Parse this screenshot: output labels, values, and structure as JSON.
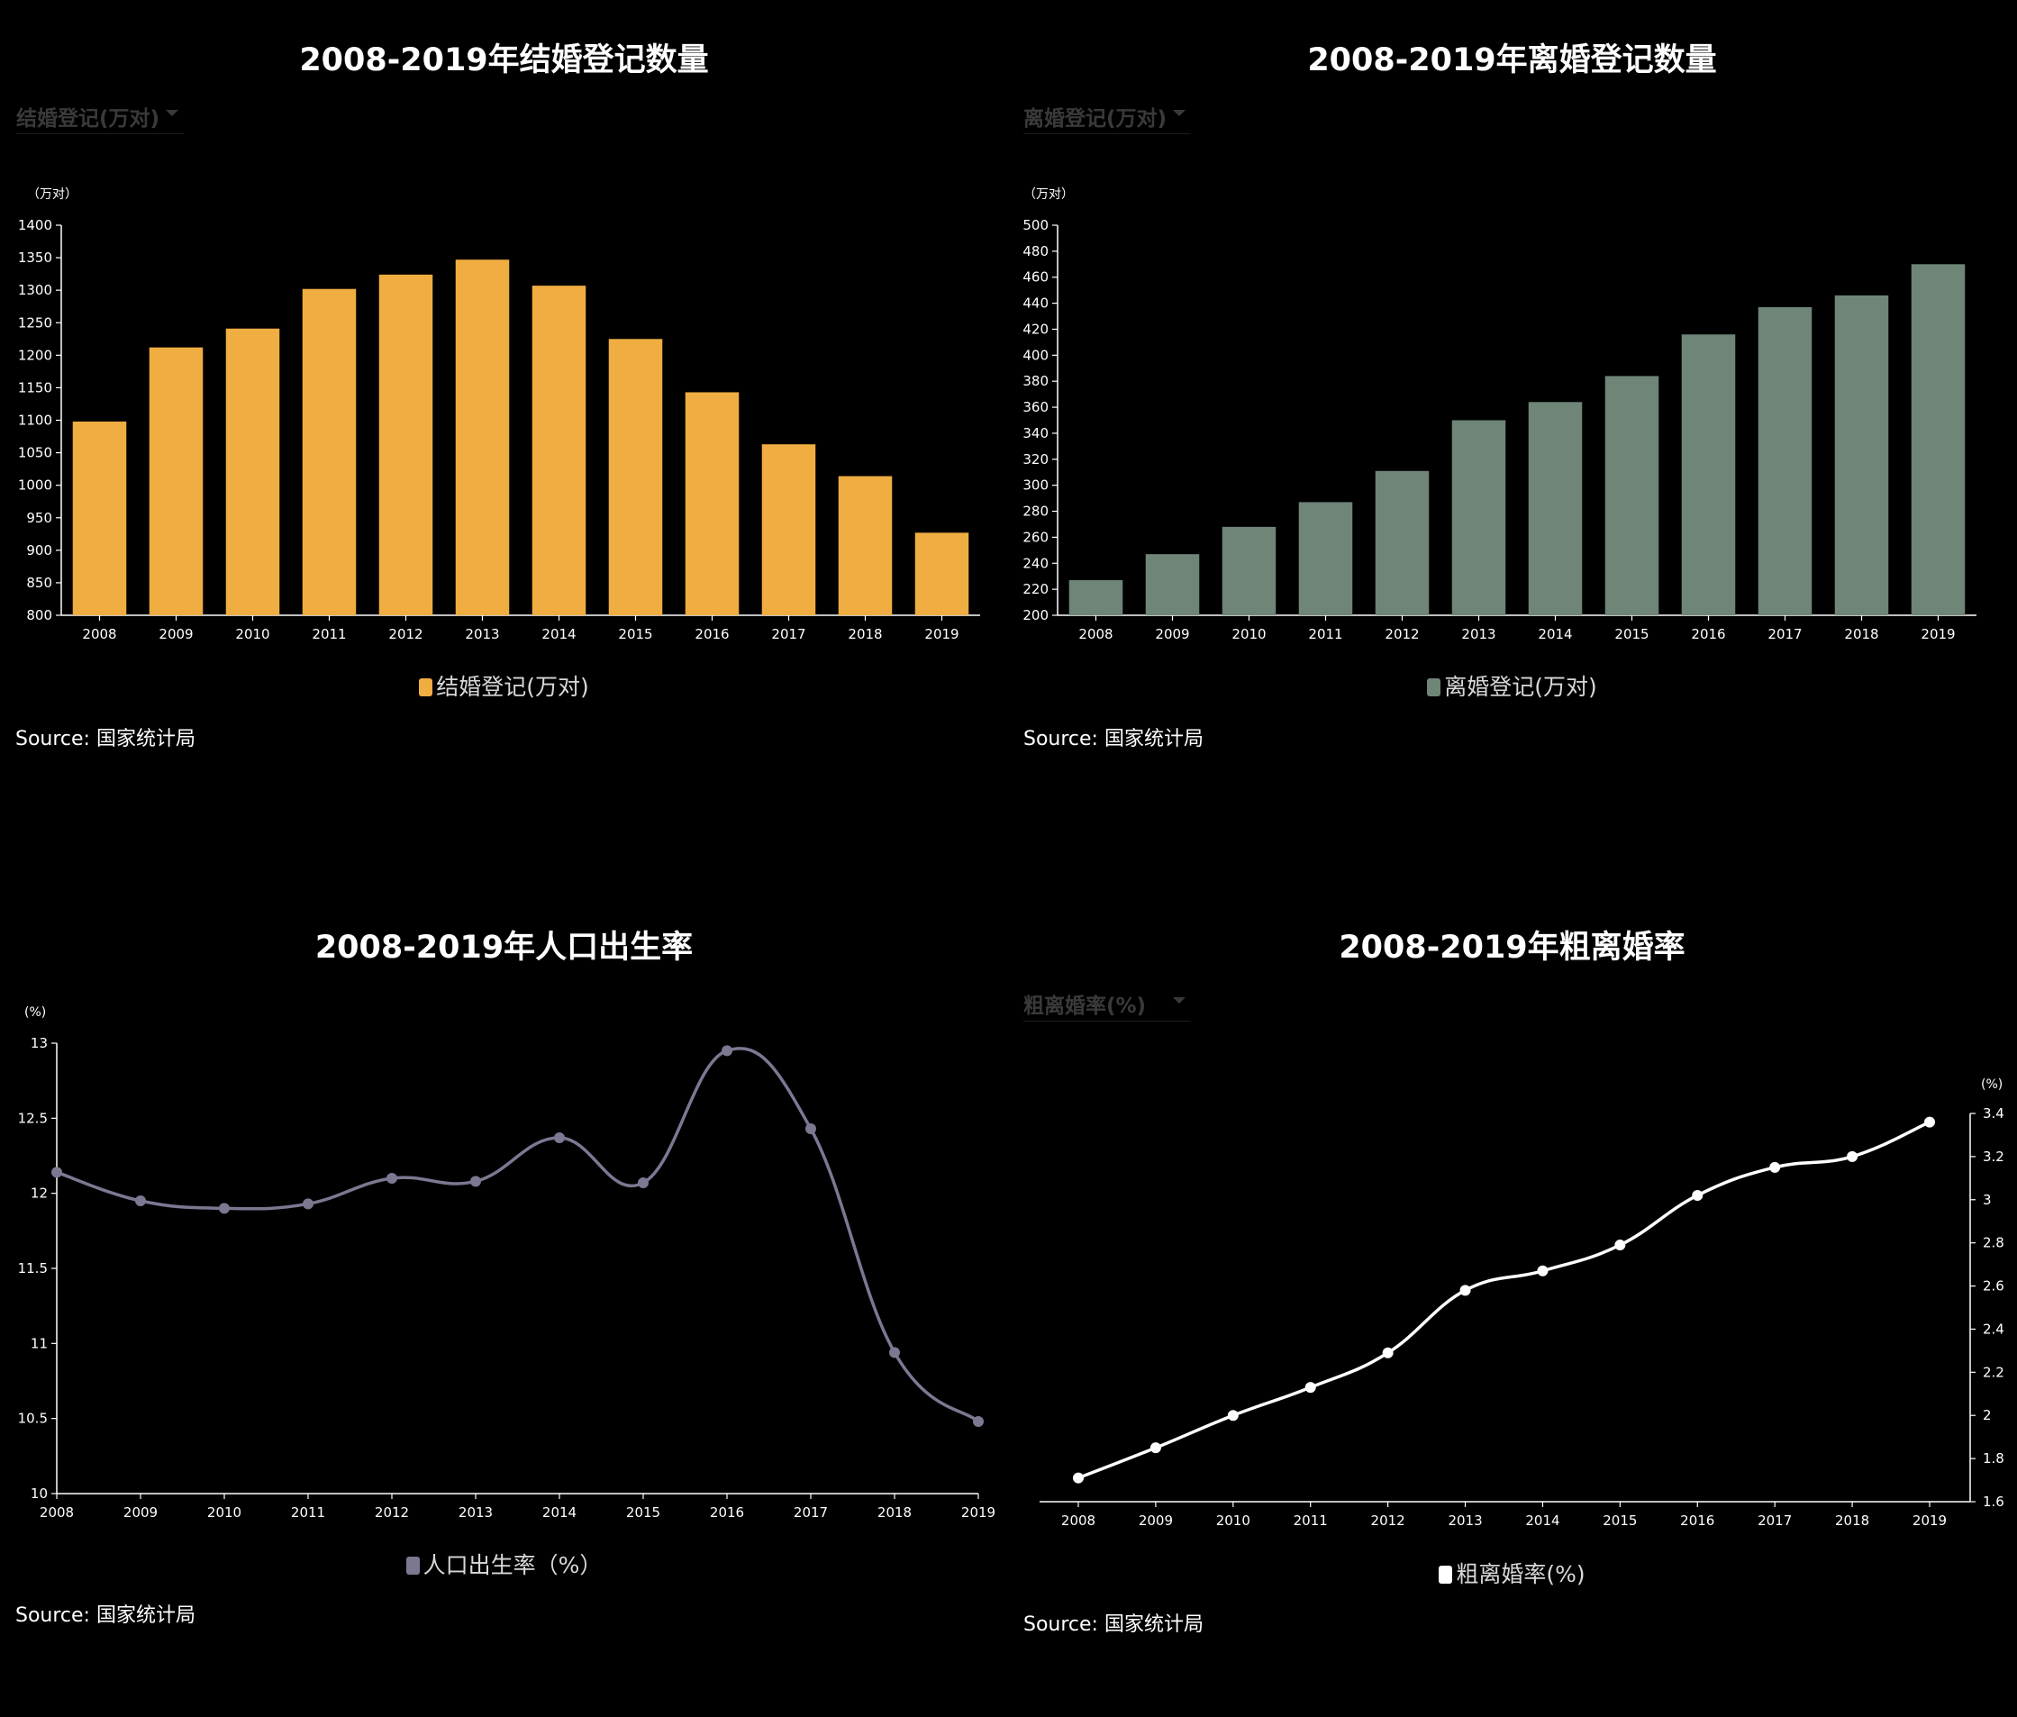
{
  "colors": {
    "background": "#000000",
    "marriage_bar": "#f0ad42",
    "divorce_bar": "#6e8578",
    "birth_line": "#7c7892",
    "divorce_rate_line": "#ffffff",
    "axis": "#ffffff"
  },
  "panels": {
    "marriage": {
      "title": "2008-2019年结婚登记数量",
      "dropdown_label": "结婚登记(万对)",
      "source": "Source: 国家统计局"
    },
    "divorce": {
      "title": "2008-2019年离婚登记数量",
      "dropdown_label": "离婚登记(万对)",
      "source": "Source: 国家统计局"
    },
    "birth": {
      "title": "2008-2019年人口出生率",
      "source": "Source: 国家统计局"
    },
    "divorce_rate": {
      "title": "2008-2019年粗离婚率",
      "dropdown_label": "粗离婚率(%)",
      "source": "Source: 国家统计局"
    }
  },
  "chart_data": [
    {
      "id": "marriage",
      "type": "bar",
      "categories": [
        "2008",
        "2009",
        "2010",
        "2011",
        "2012",
        "2013",
        "2014",
        "2015",
        "2016",
        "2017",
        "2018",
        "2019"
      ],
      "series": [
        {
          "name": "结婚登记(万对)",
          "values": [
            1098,
            1212,
            1241,
            1302,
            1324,
            1347,
            1307,
            1225,
            1143,
            1063,
            1014,
            927
          ]
        }
      ],
      "title": "2008-2019年结婚登记数量",
      "unit": "（万对）",
      "ylim": [
        800,
        1400
      ],
      "yticks": [
        800,
        850,
        900,
        950,
        1000,
        1050,
        1100,
        1150,
        1200,
        1250,
        1300,
        1350,
        1400
      ],
      "legend": "bottom-center",
      "grid": false
    },
    {
      "id": "divorce",
      "type": "bar",
      "categories": [
        "2008",
        "2009",
        "2010",
        "2011",
        "2012",
        "2013",
        "2014",
        "2015",
        "2016",
        "2017",
        "2018",
        "2019"
      ],
      "series": [
        {
          "name": "离婚登记(万对)",
          "values": [
            227,
            247,
            268,
            287,
            311,
            350,
            364,
            384,
            416,
            437,
            446,
            470
          ]
        }
      ],
      "title": "2008-2019年离婚登记数量",
      "unit": "（万对）",
      "ylim": [
        200,
        500
      ],
      "yticks": [
        200,
        220,
        240,
        260,
        280,
        300,
        320,
        340,
        360,
        380,
        400,
        420,
        440,
        460,
        480,
        500
      ],
      "legend": "bottom-center",
      "grid": false
    },
    {
      "id": "birth",
      "type": "line",
      "categories": [
        "2008",
        "2009",
        "2010",
        "2011",
        "2012",
        "2013",
        "2014",
        "2015",
        "2016",
        "2017",
        "2018",
        "2019"
      ],
      "series": [
        {
          "name": "人口出生率（%）",
          "values": [
            12.14,
            11.95,
            11.9,
            11.93,
            12.1,
            12.08,
            12.37,
            12.07,
            12.95,
            12.43,
            10.94,
            10.48
          ]
        }
      ],
      "title": "2008-2019年人口出生率",
      "unit": "(%)",
      "ylim": [
        10,
        13
      ],
      "yticks": [
        10,
        10.5,
        11,
        11.5,
        12,
        12.5,
        13
      ],
      "legend": "bottom-center",
      "grid": false
    },
    {
      "id": "divorce_rate",
      "type": "line",
      "categories": [
        "2008",
        "2009",
        "2010",
        "2011",
        "2012",
        "2013",
        "2014",
        "2015",
        "2016",
        "2017",
        "2018",
        "2019"
      ],
      "series": [
        {
          "name": "粗离婚率(%)",
          "values": [
            1.71,
            1.85,
            2.0,
            2.13,
            2.29,
            2.58,
            2.67,
            2.79,
            3.02,
            3.15,
            3.2,
            3.36
          ]
        }
      ],
      "title": "2008-2019年粗离婚率",
      "unit": "(%)",
      "ylim": [
        1.6,
        3.4
      ],
      "yticks": [
        1.6,
        1.8,
        2,
        2.2,
        2.4,
        2.6,
        2.8,
        3,
        3.2,
        3.4
      ],
      "y_axis_side": "right",
      "legend": "bottom-center",
      "grid": false
    }
  ]
}
